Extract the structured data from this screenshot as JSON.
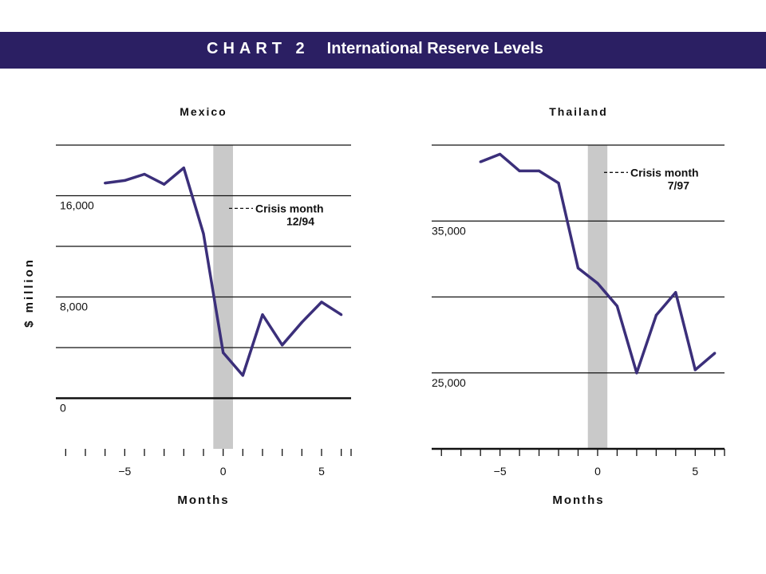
{
  "header": {
    "chart_label": "CHART 2",
    "title": "International Reserve Levels"
  },
  "colors": {
    "banner": "#2b1f63",
    "line": "#3b2f7a",
    "crisis_band": "#c9c9c9",
    "grid": "#111111"
  },
  "chart_data": [
    {
      "type": "line",
      "title": "Mexico",
      "xlabel": "Months",
      "ylabel": "$ million",
      "xlim": [
        -8.5,
        6.5
      ],
      "ylim": [
        -4000,
        20000
      ],
      "xticks": [
        -5,
        0,
        5
      ],
      "yticks": [
        {
          "value": 16000,
          "label": "16,000"
        },
        {
          "value": 8000,
          "label": "8,000"
        },
        {
          "value": 0,
          "label": "0"
        }
      ],
      "gridlines": [
        0,
        4000,
        8000,
        12000,
        16000,
        20000
      ],
      "crisis_band": [
        -0.5,
        0.5
      ],
      "annotation": {
        "line1": "Crisis month",
        "line2": "12/94",
        "y": 15000
      },
      "x": [
        -6,
        -5,
        -4,
        -3,
        -2,
        -1,
        0,
        1,
        2,
        3,
        4,
        5,
        6
      ],
      "values": [
        17000,
        17200,
        17700,
        16900,
        18200,
        13000,
        3600,
        1800,
        6600,
        4200,
        6000,
        7600,
        6600
      ]
    },
    {
      "type": "line",
      "title": "Thailand",
      "xlabel": "Months",
      "ylabel": "",
      "xlim": [
        -8.5,
        6.5
      ],
      "ylim": [
        20000,
        40000
      ],
      "xticks": [
        -5,
        0,
        5
      ],
      "yticks": [
        {
          "value": 35000,
          "label": "35,000"
        },
        {
          "value": 25000,
          "label": "25,000"
        }
      ],
      "gridlines": [
        20000,
        25000,
        30000,
        35000,
        40000
      ],
      "crisis_band": [
        -0.5,
        0.5
      ],
      "annotation": {
        "line1": "Crisis month",
        "line2": "7/97",
        "y": 38200
      },
      "x": [
        -6,
        -5,
        -4,
        -3,
        -2,
        -1,
        0,
        1,
        2,
        3,
        4,
        5,
        6
      ],
      "values": [
        38900,
        39400,
        38300,
        38300,
        37500,
        31900,
        30900,
        29400,
        25000,
        28800,
        30300,
        25200,
        26300
      ]
    }
  ]
}
